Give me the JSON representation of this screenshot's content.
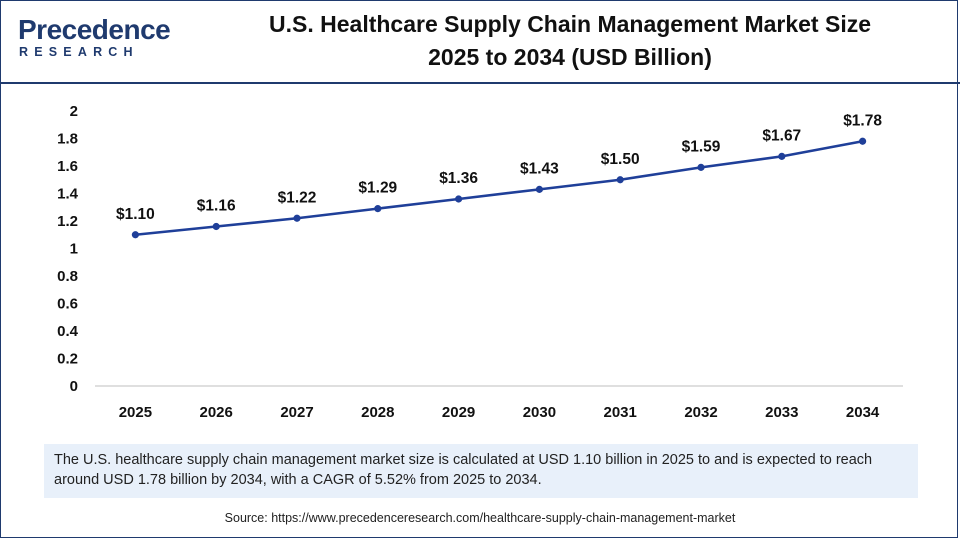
{
  "logo": {
    "name": "Precedence",
    "sub": "RESEARCH"
  },
  "title_line1": "U.S. Healthcare Supply Chain Management Market Size",
  "title_line2": "2025 to 2034 (USD Billion)",
  "note": "The U.S. healthcare supply chain management market size is calculated at USD 1.10 billion in 2025 to and is expected to reach around USD 1.78 billion by 2034, with a CAGR of 5.52% from 2025 to 2034.",
  "source": "Source: https://www.precedenceresearch.com/healthcare-supply-chain-management-market",
  "colors": {
    "brand": "#1f3a6e",
    "line": "#1f3f99",
    "note_bg": "#e8f0fa"
  },
  "chart_data": {
    "type": "line",
    "title": "U.S. Healthcare Supply Chain Management Market Size 2025 to 2034 (USD Billion)",
    "categories": [
      "2025",
      "2026",
      "2027",
      "2028",
      "2029",
      "2030",
      "2031",
      "2032",
      "2033",
      "2034"
    ],
    "series": [
      {
        "values": [
          1.1,
          1.16,
          1.22,
          1.29,
          1.36,
          1.43,
          1.5,
          1.59,
          1.67,
          1.78
        ],
        "labels": [
          "$1.10",
          "$1.16",
          "$1.22",
          "$1.29",
          "$1.36",
          "$1.43",
          "$1.50",
          "$1.59",
          "$1.67",
          "$1.78"
        ]
      }
    ],
    "yticks": [
      "0",
      "0.2",
      "0.4",
      "0.6",
      "0.8",
      "1",
      "1.2",
      "1.4",
      "1.6",
      "1.8",
      "2"
    ],
    "ylim": [
      0,
      2
    ],
    "xlabel": "",
    "ylabel": "",
    "grid": false,
    "legend": "none"
  }
}
